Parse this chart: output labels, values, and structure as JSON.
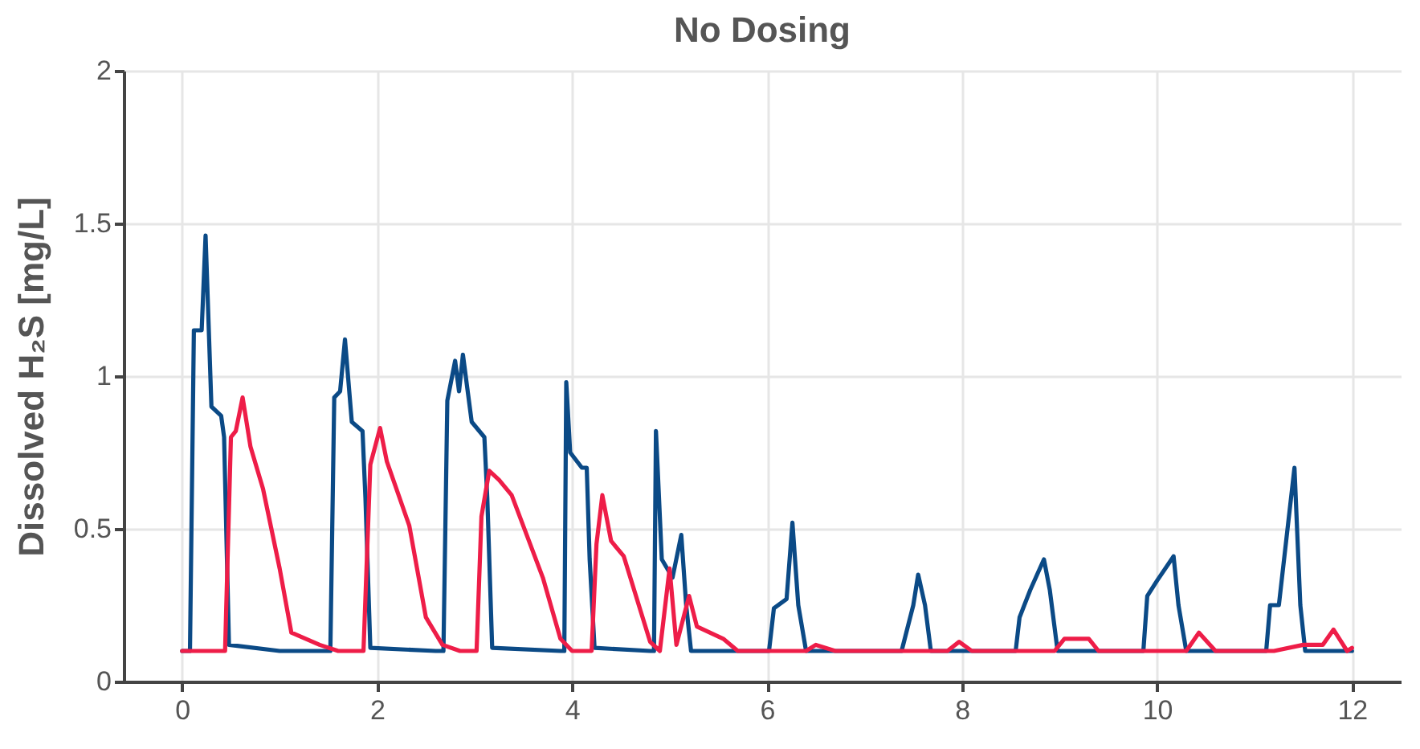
{
  "chart_data": {
    "type": "line",
    "title": "No Dosing",
    "ylabel": "Dissolved H₂S [mg/L]",
    "xlim": [
      -0.6,
      12.5
    ],
    "ylim": [
      0,
      2
    ],
    "xticks": [
      0,
      2,
      4,
      6,
      8,
      10,
      12
    ],
    "yticks": [
      0,
      0.5,
      1,
      1.5,
      2
    ],
    "grid": true,
    "line_style": "solid",
    "marker": "none",
    "series": [
      {
        "color": "#0b4a86",
        "x": [
          0,
          0.08,
          0.12,
          0.2,
          0.24,
          0.3,
          0.4,
          0.43,
          0.48,
          1.0,
          1.52,
          1.56,
          1.62,
          1.67,
          1.74,
          1.85,
          1.88,
          1.93,
          2.6,
          2.68,
          2.72,
          2.8,
          2.84,
          2.88,
          2.97,
          3.1,
          3.13,
          3.18,
          3.88,
          3.92,
          3.94,
          3.98,
          4.1,
          4.15,
          4.18,
          4.23,
          4.8,
          4.84,
          4.86,
          4.92,
          5.03,
          5.12,
          5.17,
          5.22,
          6.02,
          6.07,
          6.2,
          6.26,
          6.32,
          6.4,
          7.38,
          7.42,
          7.5,
          7.55,
          7.62,
          7.68,
          8.55,
          8.59,
          8.7,
          8.84,
          8.9,
          8.98,
          9.86,
          9.9,
          10.0,
          10.17,
          10.22,
          10.3,
          11.12,
          11.16,
          11.25,
          11.41,
          11.47,
          11.52,
          12.0
        ],
        "values": [
          0.1,
          0.1,
          1.15,
          1.15,
          1.46,
          0.9,
          0.87,
          0.8,
          0.12,
          0.1,
          0.1,
          0.93,
          0.95,
          1.12,
          0.85,
          0.82,
          0.6,
          0.11,
          0.1,
          0.1,
          0.92,
          1.05,
          0.95,
          1.07,
          0.85,
          0.8,
          0.6,
          0.11,
          0.1,
          0.1,
          0.98,
          0.75,
          0.7,
          0.7,
          0.4,
          0.11,
          0.1,
          0.1,
          0.82,
          0.4,
          0.34,
          0.48,
          0.25,
          0.1,
          0.1,
          0.24,
          0.27,
          0.52,
          0.25,
          0.1,
          0.1,
          0.15,
          0.25,
          0.35,
          0.25,
          0.1,
          0.1,
          0.21,
          0.3,
          0.4,
          0.3,
          0.1,
          0.1,
          0.28,
          0.33,
          0.41,
          0.25,
          0.1,
          0.1,
          0.25,
          0.25,
          0.7,
          0.25,
          0.1,
          0.1
        ]
      },
      {
        "color": "#ee1d48",
        "x": [
          0,
          0.44,
          0.5,
          0.55,
          0.62,
          0.7,
          0.83,
          1.0,
          1.12,
          1.41,
          1.6,
          1.86,
          1.93,
          2.03,
          2.1,
          2.33,
          2.5,
          2.67,
          2.85,
          3.02,
          3.07,
          3.15,
          3.25,
          3.38,
          3.7,
          3.88,
          4.0,
          4.2,
          4.25,
          4.31,
          4.4,
          4.53,
          4.8,
          4.9,
          5.0,
          5.07,
          5.2,
          5.28,
          5.55,
          5.7,
          6.4,
          6.5,
          6.7,
          7.85,
          7.97,
          8.1,
          8.95,
          9.05,
          9.3,
          9.4,
          10.3,
          10.43,
          10.6,
          11.2,
          11.5,
          11.7,
          11.81,
          11.95,
          12.0
        ],
        "values": [
          0.1,
          0.1,
          0.8,
          0.82,
          0.93,
          0.77,
          0.63,
          0.37,
          0.16,
          0.12,
          0.1,
          0.1,
          0.71,
          0.83,
          0.72,
          0.51,
          0.21,
          0.12,
          0.1,
          0.1,
          0.54,
          0.69,
          0.66,
          0.61,
          0.34,
          0.14,
          0.1,
          0.1,
          0.45,
          0.61,
          0.46,
          0.41,
          0.13,
          0.1,
          0.37,
          0.12,
          0.28,
          0.18,
          0.14,
          0.1,
          0.1,
          0.12,
          0.1,
          0.1,
          0.13,
          0.1,
          0.1,
          0.14,
          0.14,
          0.1,
          0.1,
          0.16,
          0.1,
          0.1,
          0.12,
          0.12,
          0.17,
          0.1,
          0.11
        ]
      }
    ]
  }
}
